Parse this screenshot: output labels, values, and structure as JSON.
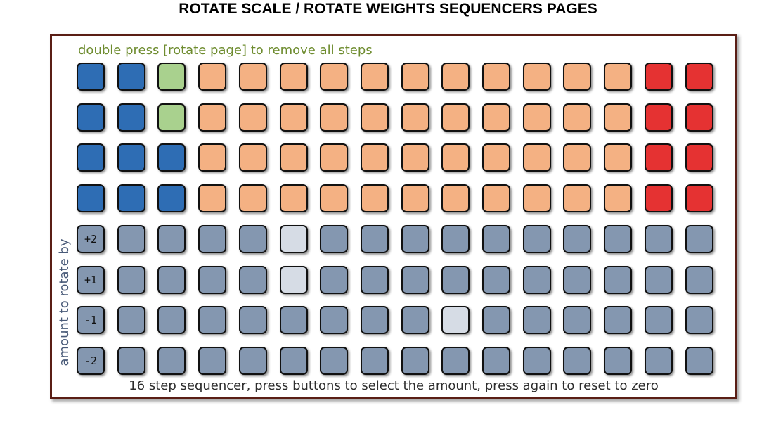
{
  "title": "ROTATE SCALE / ROTATE WEIGHTS SEQUENCERS PAGES",
  "hint": "double press [rotate page] to remove all steps",
  "footnote": "16 step sequencer, press buttons to select the amount, press again to reset to zero",
  "side_label": "amount to rotate by",
  "colors": {
    "blue": "#2e6db4",
    "green": "#a9d18e",
    "orange": "#f4b183",
    "red": "#e53232",
    "grey": "#8497b0",
    "light": "#d6dce5",
    "border": "#5a1e15",
    "hint_text": "#6e8c2f",
    "side_text": "#495a78"
  },
  "top_rows": [
    [
      "blue",
      "blue",
      "green",
      "orange",
      "orange",
      "orange",
      "orange",
      "orange",
      "orange",
      "orange",
      "orange",
      "orange",
      "orange",
      "orange",
      "red",
      "red"
    ],
    [
      "blue",
      "blue",
      "green",
      "orange",
      "orange",
      "orange",
      "orange",
      "orange",
      "orange",
      "orange",
      "orange",
      "orange",
      "orange",
      "orange",
      "red",
      "red"
    ],
    [
      "blue",
      "blue",
      "blue",
      "orange",
      "orange",
      "orange",
      "orange",
      "orange",
      "orange",
      "orange",
      "orange",
      "orange",
      "orange",
      "orange",
      "red",
      "red"
    ],
    [
      "blue",
      "blue",
      "blue",
      "orange",
      "orange",
      "orange",
      "orange",
      "orange",
      "orange",
      "orange",
      "orange",
      "orange",
      "orange",
      "orange",
      "red",
      "red"
    ]
  ],
  "amount_rows": [
    {
      "label": "+2",
      "selected_step": 6
    },
    {
      "label": "+1",
      "selected_step": 6
    },
    {
      "label": "-1",
      "selected_step": 10
    },
    {
      "label": "-2",
      "selected_step": null
    }
  ]
}
